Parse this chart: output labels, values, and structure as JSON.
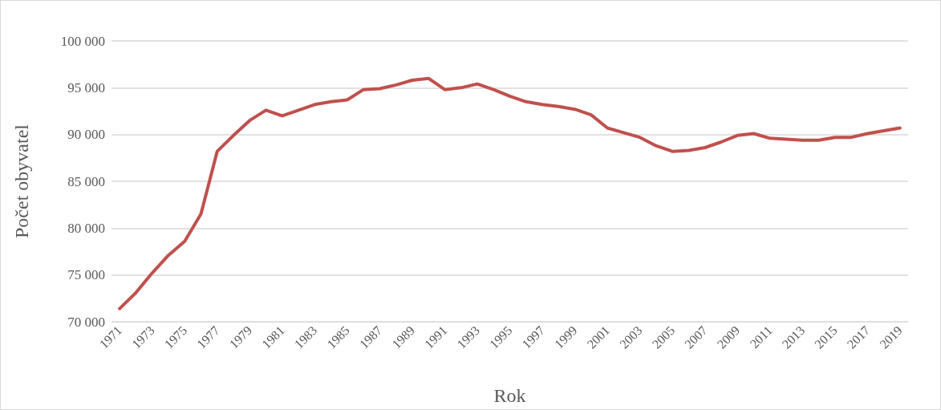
{
  "chart_data": {
    "type": "line",
    "xlabel": "Rok",
    "ylabel": "Počet obyvatel",
    "categories": [
      "1971",
      null,
      "1973",
      null,
      "1975",
      null,
      "1977",
      null,
      "1979",
      null,
      "1981",
      null,
      "1983",
      null,
      "1985",
      null,
      "1987",
      null,
      "1989",
      null,
      "1991",
      null,
      "1993",
      null,
      "1995",
      null,
      "1997",
      null,
      "1999",
      null,
      "2001",
      null,
      "2003",
      null,
      "2005",
      null,
      "2007",
      null,
      "2009",
      null,
      "2011",
      null,
      "2013",
      null,
      "2015",
      null,
      "2017",
      null,
      "2019"
    ],
    "series": [
      {
        "color": "#c0504d",
        "values": [
          71400,
          73100,
          75200,
          77100,
          78600,
          81500,
          88200,
          89900,
          91500,
          92600,
          92000,
          92600,
          93200,
          93500,
          93700,
          94800,
          94900,
          95300,
          95800,
          96000,
          94800,
          95000,
          95400,
          94800,
          94100,
          93500,
          93200,
          93000,
          92700,
          92100,
          90700,
          90200,
          89700,
          88800,
          88200,
          88300,
          88600,
          89200,
          89900,
          90100,
          89600,
          89500,
          89400,
          89400,
          89700,
          89700,
          90100,
          90400,
          90700
        ]
      }
    ],
    "ylim": [
      70000,
      100000
    ],
    "yticks": [
      {
        "value": 70000,
        "label": "70 000"
      },
      {
        "value": 75000,
        "label": "75 000"
      },
      {
        "value": 80000,
        "label": "80 000"
      },
      {
        "value": 85000,
        "label": "85 000"
      },
      {
        "value": 90000,
        "label": "90 000"
      },
      {
        "value": 95000,
        "label": "95 000"
      },
      {
        "value": 100000,
        "label": "100 000"
      }
    ],
    "grid": "y",
    "marker": "none",
    "line_style": "solid"
  }
}
